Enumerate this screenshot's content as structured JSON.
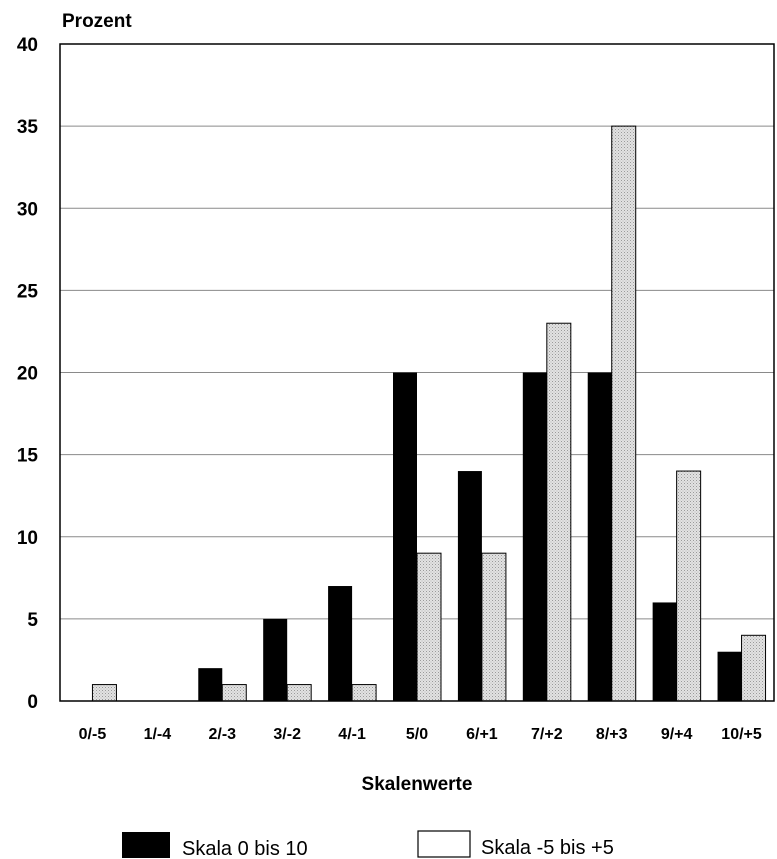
{
  "chart_data": {
    "type": "bar",
    "ylabel": "Prozent",
    "xlabel": "Skalenwerte",
    "categories": [
      "0/-5",
      "1/-4",
      "2/-3",
      "3/-2",
      "4/-1",
      "5/0",
      "6/+1",
      "7/+2",
      "8/+3",
      "9/+4",
      "10/+5"
    ],
    "series": [
      {
        "name": "Skala 0 bis 10",
        "values": [
          0,
          0,
          2,
          5,
          7,
          20,
          14,
          20,
          20,
          6,
          3
        ],
        "color": "#000000"
      },
      {
        "name": "Skala -5 bis +5",
        "values": [
          1,
          0,
          1,
          1,
          1,
          9,
          9,
          23,
          35,
          14,
          4
        ],
        "color": "#d9d9d9"
      }
    ],
    "ylim": [
      0,
      40
    ],
    "yticks": [
      0,
      5,
      10,
      15,
      20,
      25,
      30,
      35,
      40
    ],
    "grid": true,
    "legend_position": "bottom"
  }
}
